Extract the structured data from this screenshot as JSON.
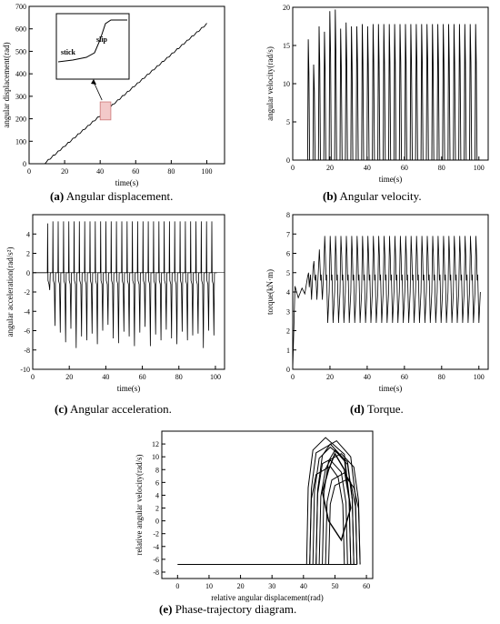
{
  "chart_data": [
    {
      "id": "a",
      "type": "line",
      "caption_letter": "(a)",
      "caption_text": "Angular displacement.",
      "xlabel": "time(s)",
      "ylabel": "angular displacement(rad)",
      "xlim": [
        0,
        110
      ],
      "ylim": [
        0,
        700
      ],
      "xticks": [
        0,
        20,
        40,
        60,
        80,
        100
      ],
      "yticks": [
        0,
        100,
        200,
        300,
        400,
        500,
        600,
        700
      ],
      "series": [
        {
          "x": [
            8,
            100
          ],
          "y": [
            0,
            625
          ],
          "steps": 33
        }
      ],
      "inset": {
        "stick_label": "stick",
        "slip_label": "slip",
        "highlight_x": [
          40,
          46
        ],
        "highlight_y": [
          195,
          275
        ]
      }
    },
    {
      "id": "b",
      "type": "line",
      "caption_letter": "(b)",
      "caption_text": "Angular velocity.",
      "xlabel": "time(s)",
      "ylabel": "angular velocity(rad/s)",
      "xlim": [
        0,
        105
      ],
      "ylim": [
        0,
        20
      ],
      "xticks": [
        0,
        20,
        40,
        60,
        80,
        100
      ],
      "yticks": [
        0,
        5,
        10,
        15,
        20
      ],
      "series": [
        {
          "start": 8,
          "end": 100,
          "period": 2.9,
          "base": 0,
          "peaks": [
            15.8,
            12.5,
            17.5,
            16.8,
            19.5,
            19.7,
            17.2,
            18.0,
            17.5,
            17.5,
            17.8,
            17.5,
            17.8,
            17.8,
            17.8,
            17.8,
            17.8,
            17.8,
            17.8,
            17.8,
            17.8,
            17.8,
            17.8,
            17.8,
            17.8,
            17.8,
            17.8,
            17.8,
            17.8,
            17.8,
            17.8,
            17.8
          ]
        }
      ]
    },
    {
      "id": "c",
      "type": "line",
      "caption_letter": "(c)",
      "caption_text": "Angular acceleration.",
      "xlabel": "time(s)",
      "ylabel": "angular acceleration(rad/s²)",
      "xlim": [
        0,
        105
      ],
      "ylim": [
        -10,
        6
      ],
      "xticks": [
        0,
        20,
        40,
        60,
        80,
        100
      ],
      "yticks": [
        -10,
        -8,
        -6,
        -4,
        -2,
        0,
        2,
        4
      ],
      "series": [
        {
          "start": 8,
          "end": 100,
          "period": 2.9,
          "pos_peak": 5.3,
          "neg_peaks": [
            -1.8,
            -5.5,
            -6.2,
            -7.2,
            -5.8,
            -7.8,
            -6.6,
            -7.0,
            -6.3,
            -7.4,
            -6.0,
            -5.4,
            -6.8,
            -7.3,
            -6.1,
            -6.6,
            -7.6,
            -6.2,
            -5.6,
            -7.6,
            -6.4,
            -7.0,
            -5.9,
            -6.8,
            -7.4,
            -6.1,
            -7.0,
            -6.5,
            -6.3,
            -7.8,
            -6.0,
            -6.5
          ]
        }
      ]
    },
    {
      "id": "d",
      "type": "line",
      "caption_letter": "(d)",
      "caption_text": "Torque.",
      "xlabel": "time(s)",
      "ylabel": "torque(kN·m)",
      "xlim": [
        0,
        105
      ],
      "ylim": [
        0,
        8
      ],
      "xticks": [
        0,
        20,
        40,
        60,
        80,
        100
      ],
      "yticks": [
        0,
        1,
        2,
        3,
        4,
        5,
        6,
        7,
        8
      ],
      "series": [
        {
          "start": 8,
          "end": 100,
          "period": 2.9,
          "high": 6.9,
          "low": 2.4,
          "mid": 4.6
        }
      ]
    },
    {
      "id": "e",
      "type": "line",
      "caption_letter": "(e)",
      "caption_text": "Phase-trajectory diagram.",
      "xlabel": "relative angular displacement(rad)",
      "ylabel": "relative angular velocity(rad/s)",
      "xlim": [
        -5,
        62
      ],
      "ylim": [
        -9,
        14
      ],
      "xticks": [
        0,
        10,
        20,
        30,
        40,
        50,
        60
      ],
      "yticks": [
        -8,
        -6,
        -4,
        -2,
        0,
        2,
        4,
        6,
        8,
        10,
        12
      ],
      "series": [
        {
          "base_y": -6.8,
          "x_start": 0,
          "x_end": 57,
          "loop_x": [
            40,
            58
          ],
          "loop_top": 13
        }
      ]
    }
  ]
}
